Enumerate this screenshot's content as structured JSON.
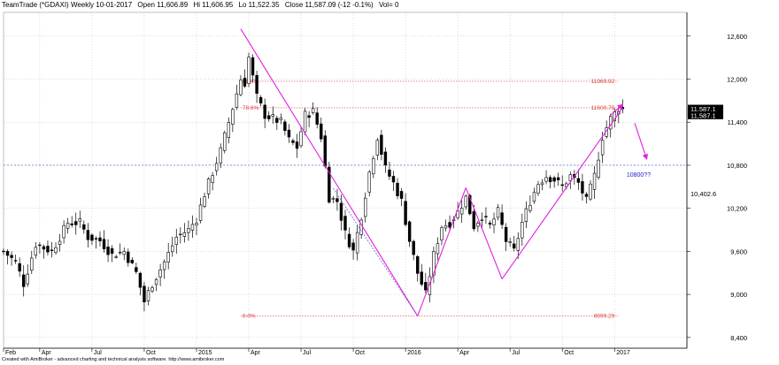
{
  "header": {
    "title": "TeamTrade (*GDAXI) Weekly 10-01-2017",
    "open": "Open 11,606.89",
    "high": "Hi 11,606.95",
    "low": "Lo 11,522.35",
    "close": "Close 11,587.09 (-12 -0.1%)",
    "vol": "Vol= 0"
  },
  "footer": "Created with AmiBroker - advanced charting and technical analysis software. http://www.amibroker.com",
  "colors": {
    "bull": "#ffffff",
    "bear": "#000000",
    "pattern": "#e020e0",
    "fib": "#e04040",
    "hline": "#5555cc",
    "target": "#2222cc",
    "grid": "#bbbbbb"
  },
  "chart_data": {
    "type": "candlestick",
    "title": "TeamTrade (*GDAXI) Weekly 10-01-2017",
    "y_axis": {
      "ticks": [
        8400,
        9000,
        9600,
        10200,
        10800,
        11400,
        12000,
        12600
      ],
      "tick_labels": [
        "8,400",
        "9,000",
        "9,600",
        "10,200",
        "10,800",
        "11,400",
        "12,000",
        "12,600"
      ],
      "range": [
        8250,
        12930
      ],
      "side": "right"
    },
    "x_axis": {
      "labels": [
        {
          "label": "Feb",
          "week": 0
        },
        {
          "label": "Apr",
          "week": 9
        },
        {
          "label": "Jul",
          "week": 22
        },
        {
          "label": "Oct",
          "week": 35
        },
        {
          "label": "2015",
          "week": 48
        },
        {
          "label": "Apr",
          "week": 61
        },
        {
          "label": "Jul",
          "week": 74
        },
        {
          "label": "Oct",
          "week": 87
        },
        {
          "label": "2016",
          "week": 100
        },
        {
          "label": "Apr",
          "week": 113
        },
        {
          "label": "Jul",
          "week": 126
        },
        {
          "label": "Oct",
          "week": 139
        },
        {
          "label": "2017",
          "week": 152
        }
      ],
      "week_range": [
        0,
        170
      ]
    },
    "grid": true,
    "ohlc_anchors": [
      {
        "w": 0,
        "c": 9600
      },
      {
        "w": 3,
        "c": 9450
      },
      {
        "w": 5,
        "c": 9150
      },
      {
        "w": 8,
        "c": 9700
      },
      {
        "w": 12,
        "c": 9600
      },
      {
        "w": 16,
        "c": 10000
      },
      {
        "w": 19,
        "c": 10000
      },
      {
        "w": 21,
        "c": 9800
      },
      {
        "w": 24,
        "c": 9750
      },
      {
        "w": 27,
        "c": 9550
      },
      {
        "w": 30,
        "c": 9600
      },
      {
        "w": 33,
        "c": 9300
      },
      {
        "w": 35,
        "c": 8900
      },
      {
        "w": 37,
        "c": 9150
      },
      {
        "w": 40,
        "c": 9450
      },
      {
        "w": 43,
        "c": 9800
      },
      {
        "w": 46,
        "c": 9900
      },
      {
        "w": 48,
        "c": 10050
      },
      {
        "w": 50,
        "c": 10400
      },
      {
        "w": 54,
        "c": 11000
      },
      {
        "w": 57,
        "c": 11600
      },
      {
        "w": 59,
        "c": 12000
      },
      {
        "w": 60,
        "c": 11950
      },
      {
        "w": 61,
        "c": 12300
      },
      {
        "w": 63,
        "c": 11750
      },
      {
        "w": 65,
        "c": 11500
      },
      {
        "w": 67,
        "c": 11450
      },
      {
        "w": 69,
        "c": 11400
      },
      {
        "w": 71,
        "c": 11150
      },
      {
        "w": 73,
        "c": 11050
      },
      {
        "w": 75,
        "c": 11500
      },
      {
        "w": 77,
        "c": 11550
      },
      {
        "w": 79,
        "c": 11200
      },
      {
        "w": 81,
        "c": 10350
      },
      {
        "w": 83,
        "c": 10300
      },
      {
        "w": 85,
        "c": 9850
      },
      {
        "w": 87,
        "c": 9600
      },
      {
        "w": 89,
        "c": 10100
      },
      {
        "w": 91,
        "c": 10700
      },
      {
        "w": 93,
        "c": 11200
      },
      {
        "w": 95,
        "c": 10750
      },
      {
        "w": 97,
        "c": 10550
      },
      {
        "w": 99,
        "c": 10300
      },
      {
        "w": 101,
        "c": 9750
      },
      {
        "w": 103,
        "c": 9300
      },
      {
        "w": 105,
        "c": 9000
      },
      {
        "w": 107,
        "c": 9550
      },
      {
        "w": 109,
        "c": 9950
      },
      {
        "w": 111,
        "c": 10000
      },
      {
        "w": 113,
        "c": 10150
      },
      {
        "w": 115,
        "c": 10350
      },
      {
        "w": 117,
        "c": 9950
      },
      {
        "w": 119,
        "c": 10100
      },
      {
        "w": 121,
        "c": 9950
      },
      {
        "w": 123,
        "c": 10150
      },
      {
        "w": 125,
        "c": 9750
      },
      {
        "w": 127,
        "c": 9600
      },
      {
        "w": 129,
        "c": 10000
      },
      {
        "w": 131,
        "c": 10300
      },
      {
        "w": 133,
        "c": 10550
      },
      {
        "w": 135,
        "c": 10650
      },
      {
        "w": 137,
        "c": 10600
      },
      {
        "w": 139,
        "c": 10500
      },
      {
        "w": 141,
        "c": 10650
      },
      {
        "w": 143,
        "c": 10550
      },
      {
        "w": 145,
        "c": 10300
      },
      {
        "w": 147,
        "c": 10650
      },
      {
        "w": 149,
        "c": 11200
      },
      {
        "w": 151,
        "c": 11450
      },
      {
        "w": 153,
        "c": 11600
      },
      {
        "w": 154,
        "c": 11587
      }
    ],
    "pattern_lines": [
      {
        "from": [
          59,
          12700
        ],
        "to": [
          103,
          8699
        ]
      },
      {
        "from": [
          103,
          8699
        ],
        "to": [
          115,
          10486
        ]
      },
      {
        "from": [
          115,
          10486
        ],
        "to": [
          124,
          9214
        ]
      },
      {
        "from": [
          124,
          9214
        ],
        "to": [
          154,
          11600
        ]
      }
    ],
    "channel_line": {
      "from": [
        82,
        10480
      ],
      "to": [
        103,
        8699
      ]
    },
    "projection_arrow": {
      "from": [
        157,
        11387
      ],
      "to": [
        160,
        10886
      ]
    },
    "current_arrow": {
      "from": [
        151,
        11497
      ],
      "to": [
        154,
        11647
      ]
    },
    "fib_levels": [
      {
        "label": "0.0%",
        "value": 8699.29,
        "value_label": "8699.29",
        "from_week": 59
      },
      {
        "label": "78.6%",
        "value": 11600.78,
        "value_label": "11600.78",
        "from_week": 59
      },
      {
        "label": "88.6%",
        "value": 11969.92,
        "value_label": "11969.92",
        "from_week": 59
      }
    ],
    "horizontal_line": {
      "value": 10800
    },
    "price_tags": [
      {
        "label": "11,587.1",
        "value": 11587.1
      },
      {
        "label": "11,587.1",
        "value": 11496.1
      },
      {
        "label": "10,402.6",
        "value": 10402.6
      }
    ],
    "annotation": {
      "label": "10800??",
      "week": 158,
      "value": 10738
    }
  }
}
